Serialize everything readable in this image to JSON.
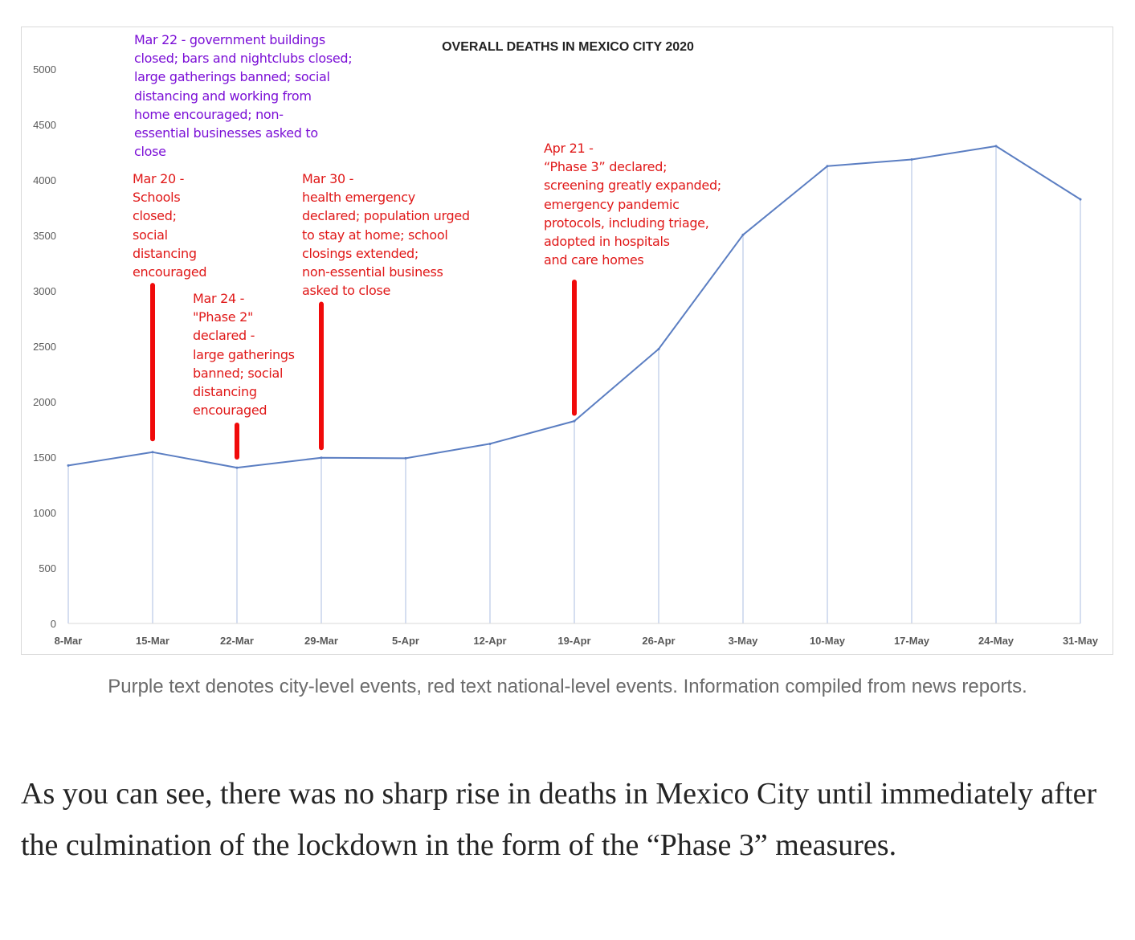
{
  "chart_data": {
    "type": "line",
    "title": "OVERALL DEATHS IN MEXICO CITY 2020",
    "categories": [
      "8-Mar",
      "15-Mar",
      "22-Mar",
      "29-Mar",
      "5-Apr",
      "12-Apr",
      "19-Apr",
      "26-Apr",
      "3-May",
      "10-May",
      "17-May",
      "24-May",
      "31-May"
    ],
    "series": [
      {
        "values": [
          1425,
          1545,
          1405,
          1495,
          1490,
          1620,
          1825,
          2475,
          3505,
          4125,
          4185,
          4305,
          3825
        ]
      }
    ],
    "yticks": [
      "0",
      "500",
      "1000",
      "1500",
      "2000",
      "2500",
      "3000",
      "3500",
      "4000",
      "4500",
      "5000"
    ],
    "ylim": [
      0,
      5000
    ],
    "xlabel": "",
    "ylabel": "",
    "grid": "vertical drop lines from each point",
    "line_color": "#5b7ec2",
    "dropline_color": "#c7d3ec",
    "annotations": [
      {
        "id": "mar22",
        "color": "#7b0fd6",
        "text": "Mar 22 - government buildings\nclosed; bars and nightclubs closed;\nlarge gatherings banned; social\ndistancing and working from\nhome encouraged; non-\nessential businesses asked to\nclose"
      },
      {
        "id": "mar20",
        "color": "#e01818",
        "text": "Mar 20 -\nSchools\nclosed;\nsocial\ndistancing\nencouraged"
      },
      {
        "id": "mar24",
        "color": "#e01818",
        "text": "Mar 24 -\n\"Phase 2\"\ndeclared -\nlarge gatherings\nbanned; social\ndistancing\nencouraged"
      },
      {
        "id": "mar30",
        "color": "#e01818",
        "text": "Mar 30 -\nhealth emergency\ndeclared; population urged\nto stay at home; school\nclosings extended;\nnon-essential business\nasked to close"
      },
      {
        "id": "apr21",
        "color": "#e01818",
        "text": "Apr 21 -\n“Phase 3” declared;\nscreening greatly expanded;\nemergency pandemic\nprotocols, including triage,\nadopted in hospitals\nand care homes"
      }
    ],
    "markers": [
      {
        "id": "mar20",
        "at_category": "15-Mar",
        "from_value": 3050,
        "to_value": 1665,
        "color": "#f00a0a"
      },
      {
        "id": "mar24",
        "at_category": "22-Mar",
        "from_value": 1790,
        "to_value": 1500,
        "color": "#f00a0a"
      },
      {
        "id": "mar30",
        "at_category": "29-Mar",
        "from_value": 2880,
        "to_value": 1585,
        "color": "#f00a0a"
      },
      {
        "id": "apr21",
        "at_category": "19-Apr",
        "from_value": 3080,
        "to_value": 1895,
        "color": "#f00a0a"
      }
    ]
  },
  "caption": "Purple text denotes city-level events, red text national-level events. Information compiled from news reports.",
  "body_text": "As you can see, there was no sharp rise in deaths in Mexico City until immediately after the culmination of the lockdown in the form of the “Phase 3” measures."
}
